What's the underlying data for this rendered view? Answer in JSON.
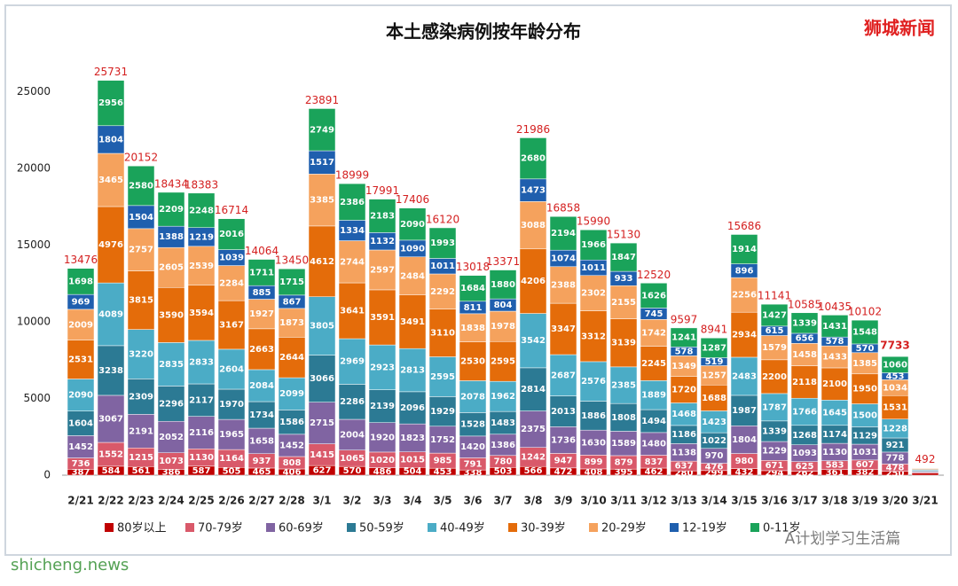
{
  "chart_data": {
    "type": "stacked_bar",
    "title": "本土感染病例按年龄分布",
    "watermarks": [
      "狮城新闻",
      "shicheng.news",
      "A计划学习生活篇"
    ],
    "categories": [
      "2/21",
      "2/22",
      "2/23",
      "2/24",
      "2/25",
      "2/26",
      "2/27",
      "2/28",
      "3/1",
      "3/2",
      "3/3",
      "3/4",
      "3/5",
      "3/6",
      "3/7",
      "3/8",
      "3/9",
      "3/10",
      "3/11",
      "3/12",
      "3/13",
      "3/14",
      "3/15",
      "3/16",
      "3/17",
      "3/18",
      "3/19",
      "3/20",
      "3/21"
    ],
    "totals": [
      13476,
      25731,
      20152,
      18434,
      18383,
      16714,
      14064,
      13450,
      23891,
      18999,
      17991,
      17406,
      16120,
      13018,
      13371,
      21986,
      16858,
      15990,
      15130,
      12520,
      9597,
      8941,
      15686,
      11141,
      10585,
      10435,
      10102,
      7733,
      492
    ],
    "series": [
      {
        "name": "80岁以上",
        "color": "#c00000",
        "values": [
          387,
          584,
          561,
          386,
          587,
          505,
          465,
          406,
          627,
          570,
          486,
          504,
          453,
          338,
          503,
          566,
          472,
          408,
          395,
          462,
          280,
          299,
          432,
          294,
          262,
          361,
          382,
          250,
          136
        ]
      },
      {
        "name": "70-79岁",
        "color": "#d9596a",
        "values": [
          736,
          1552,
          1215,
          1073,
          1130,
          1164,
          937,
          808,
          1415,
          1065,
          1020,
          1015,
          985,
          791,
          780,
          1242,
          947,
          899,
          879,
          837,
          637,
          476,
          980,
          671,
          625,
          583,
          607,
          478,
          60
        ]
      },
      {
        "name": "60-69岁",
        "color": "#8064a2",
        "values": [
          1452,
          3067,
          2191,
          2052,
          2116,
          1965,
          1658,
          1452,
          2715,
          2004,
          1920,
          1823,
          1752,
          1420,
          1386,
          2375,
          1736,
          1630,
          1589,
          1480,
          1138,
          970,
          1804,
          1229,
          1093,
          1130,
          1031,
          778,
          60
        ]
      },
      {
        "name": "50-59岁",
        "color": "#2c7a94",
        "values": [
          1604,
          3238,
          2309,
          2296,
          2117,
          1970,
          1734,
          1586,
          3066,
          2286,
          2139,
          2096,
          1929,
          1528,
          1483,
          2814,
          2013,
          1886,
          1808,
          1494,
          1186,
          1022,
          1987,
          1339,
          1268,
          1174,
          1129,
          921,
          60
        ]
      },
      {
        "name": "40-49岁",
        "color": "#4bacc6",
        "values": [
          2090,
          4089,
          3220,
          2835,
          2833,
          2604,
          2084,
          2099,
          3805,
          2969,
          2923,
          2813,
          2595,
          2078,
          1962,
          3542,
          2687,
          2576,
          2385,
          1889,
          1468,
          1423,
          2483,
          1787,
          1766,
          1645,
          1500,
          1228,
          60
        ]
      },
      {
        "name": "30-39岁",
        "color": "#e46c0a",
        "values": [
          2531,
          4976,
          3815,
          3590,
          3594,
          3167,
          2663,
          2644,
          4612,
          3641,
          3591,
          3491,
          3110,
          2530,
          2595,
          4206,
          3347,
          3312,
          3139,
          2245,
          1720,
          1688,
          2934,
          2200,
          2118,
          2100,
          1950,
          1531,
          50
        ]
      },
      {
        "name": "20-29岁",
        "color": "#f5a25d",
        "values": [
          2009,
          3465,
          2757,
          2605,
          2539,
          2284,
          1927,
          1873,
          3385,
          2744,
          2597,
          2484,
          2292,
          1838,
          1978,
          3088,
          2388,
          2302,
          2155,
          1742,
          1349,
          1257,
          2256,
          1579,
          1458,
          1433,
          1385,
          1034,
          40
        ]
      },
      {
        "name": "12-19岁",
        "color": "#1f5fae",
        "values": [
          969,
          1804,
          1504,
          1388,
          1219,
          1039,
          885,
          867,
          1517,
          1334,
          1132,
          1090,
          1011,
          811,
          804,
          1473,
          1074,
          1011,
          933,
          745,
          578,
          519,
          896,
          615,
          656,
          578,
          570,
          453,
          10
        ]
      },
      {
        "name": "0-11岁",
        "color": "#1aa35a",
        "values": [
          1698,
          2956,
          2580,
          2209,
          2248,
          2016,
          1711,
          1715,
          2749,
          2386,
          2183,
          2090,
          1993,
          1684,
          1880,
          2680,
          2194,
          1966,
          1847,
          1626,
          1241,
          1287,
          1914,
          1427,
          1339,
          1431,
          1548,
          1060,
          16
        ]
      }
    ],
    "ylim": [
      0,
      27500
    ],
    "yticks": [
      0,
      5000,
      10000,
      15000,
      20000,
      25000
    ]
  }
}
